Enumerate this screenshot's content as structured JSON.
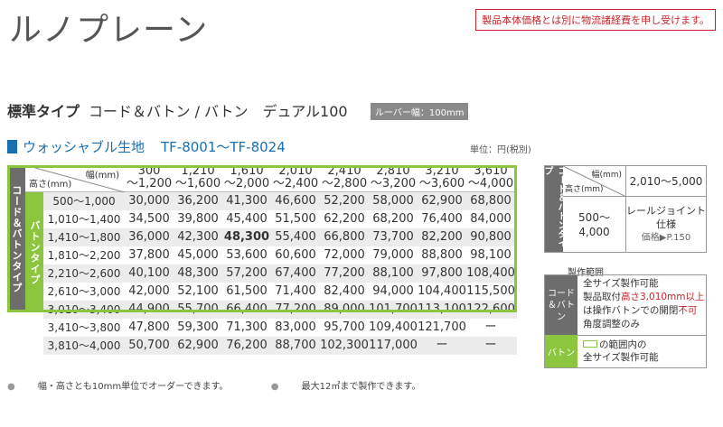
{
  "title": "ルノプレーン",
  "notice": "製品本体価格とは別に物流諸経費を申し受けます。",
  "standard": {
    "bold": "標準タイプ",
    "rest": "コード＆バトン / バトン　デュアル100"
  },
  "badge": "ルーバー幅：100mm",
  "fabric": {
    "name": "ウォッシャブル生地",
    "numbers": "TF-8001〜TF-8024"
  },
  "unit": "単位：円(税別)",
  "table": {
    "corner_w": "幅(mm)",
    "corner_h": "高さ(mm)",
    "outer_label": "コード＆バトンタイプ",
    "inner_label": "バトンタイプ",
    "columns": [
      [
        "300",
        "〜1,200"
      ],
      [
        "1,210",
        "〜1,600"
      ],
      [
        "1,610",
        "〜2,000"
      ],
      [
        "2,010",
        "〜2,400"
      ],
      [
        "2,410",
        "〜2,800"
      ],
      [
        "2,810",
        "〜3,200"
      ],
      [
        "3,210",
        "〜3,600"
      ],
      [
        "3,610",
        "〜4,000"
      ]
    ],
    "rows": [
      {
        "label": "500〜1,000",
        "values": [
          "30,000",
          "36,200",
          "41,300",
          "46,600",
          "52,200",
          "58,000",
          "62,900",
          "68,800"
        ]
      },
      {
        "label": "1,010〜1,400",
        "values": [
          "34,500",
          "39,800",
          "45,400",
          "51,500",
          "62,200",
          "68,200",
          "76,400",
          "84,000"
        ]
      },
      {
        "label": "1,410〜1,800",
        "values": [
          "36,000",
          "42,300",
          "48,300",
          "55,400",
          "66,800",
          "73,700",
          "82,200",
          "90,800"
        ]
      },
      {
        "label": "1,810〜2,200",
        "values": [
          "37,800",
          "45,000",
          "53,600",
          "60,600",
          "72,000",
          "79,000",
          "88,800",
          "98,100"
        ]
      },
      {
        "label": "2,210〜2,600",
        "values": [
          "40,100",
          "48,300",
          "57,200",
          "67,400",
          "77,200",
          "88,100",
          "97,800",
          "108,400"
        ]
      },
      {
        "label": "2,610〜3,000",
        "values": [
          "42,000",
          "52,100",
          "61,500",
          "71,400",
          "82,400",
          "94,000",
          "104,400",
          "115,500"
        ]
      },
      {
        "label": "3,010〜3,400",
        "values": [
          "44,900",
          "55,700",
          "66,400",
          "77,200",
          "89,000",
          "101,700",
          "113,100",
          "122,600"
        ]
      },
      {
        "label": "3,410〜3,800",
        "values": [
          "47,800",
          "59,300",
          "71,300",
          "83,000",
          "95,700",
          "109,400",
          "121,700",
          "ー"
        ]
      },
      {
        "label": "3,810〜4,000",
        "values": [
          "50,700",
          "62,900",
          "76,200",
          "88,700",
          "102,300",
          "117,000",
          "ー",
          "ー"
        ]
      }
    ]
  },
  "side": {
    "label": "コード＆バトンタイプ",
    "corner_w": "幅(mm)",
    "corner_h": "高さ(mm)",
    "head": "2,010〜5,000",
    "row": "500〜4,000",
    "val1": "レールジョイント",
    "val2": "仕様",
    "price": "価格▶P.150"
  },
  "legend": {
    "title": "製作範囲",
    "lab1": "コード＆バトン",
    "lab2": "バトン",
    "l1": "全サイズ製作可能",
    "l2a": "製品取付",
    "l2red": "高さ3,010mm以上",
    "l3a": "は操作バトンでの開閉",
    "l3red": "不可",
    "l4": "角度調整のみ",
    "m1": "の範囲内の",
    "m2": "全サイズ製作可能"
  },
  "footnotes": [
    "幅・高さとも10mm単位でオーダーできます。",
    "最大12㎡まで製作できます。"
  ]
}
